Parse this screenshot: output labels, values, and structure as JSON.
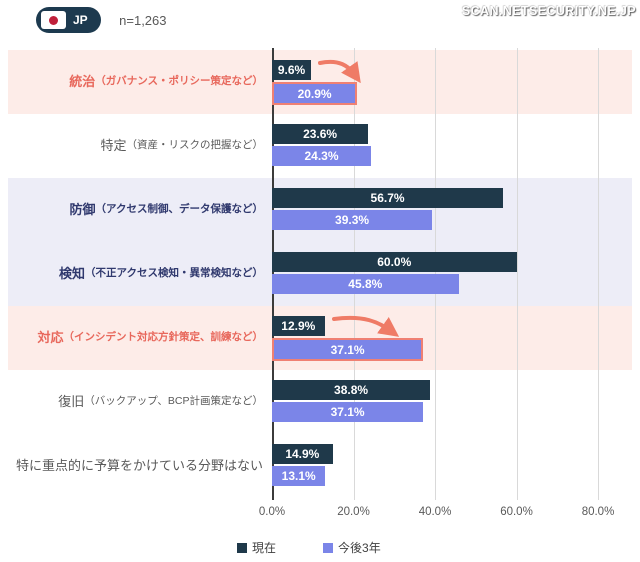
{
  "header": {
    "country_badge": {
      "label": "JP",
      "flag": "japan-flag"
    },
    "sample_size": "n=1,263"
  },
  "watermark": "SCAN.NETSECURITY.NE.JP",
  "colors": {
    "bar_current": "#1f394a",
    "bar_future": "#7b85e8",
    "highlight_red_bg": "#fdece8",
    "highlight_blue_bg": "#ededf7",
    "highlight_red_text": "#e8685c",
    "highlight_blue_text": "#30396e",
    "highlight_border": "#ef8073",
    "arrow": "#ef7b66",
    "gridline": "#d9d9d9",
    "axis_line": "#3b3b3b",
    "text_gray": "#595959",
    "badge_bg": "#1d3a4f",
    "flag_red": "#c0203b"
  },
  "chart_data": {
    "type": "bar",
    "orientation": "horizontal",
    "value_unit": "%",
    "x_max": 80,
    "x_ticks": [
      0,
      20,
      40,
      60,
      80
    ],
    "x_tick_labels": [
      "0.0%",
      "20.0%",
      "40.0%",
      "60.0%",
      "80.0%"
    ],
    "grid": true,
    "legend_position": "bottom",
    "legend": [
      {
        "name": "現在",
        "color": "#1f394a"
      },
      {
        "name": "今後3年",
        "color": "#7b85e8"
      }
    ],
    "categories": [
      "統治（ガバナンス・ポリシー策定など）",
      "特定（資産・リスクの把握など）",
      "防御（アクセス制御、データ保護など）",
      "検知（不正アクセス検知・異常検知など）",
      "対応（インシデント対応方針策定、訓練など）",
      "復旧（バックアップ、BCP計画策定など）",
      "特に重点的に予算をかけている分野はない"
    ],
    "series": [
      {
        "name": "現在",
        "values": [
          9.6,
          23.6,
          56.7,
          60.0,
          12.9,
          38.8,
          14.9
        ]
      },
      {
        "name": "今後3年",
        "values": [
          20.9,
          24.3,
          39.3,
          45.8,
          37.1,
          37.1,
          13.1
        ]
      }
    ],
    "rows": [
      {
        "name": "統治",
        "detail": "（ガバナンス・ポリシー策定など）",
        "current": 9.6,
        "future": 20.9,
        "highlight": "red",
        "arrow": true
      },
      {
        "name": "特定",
        "detail": "（資産・リスクの把握など）",
        "current": 23.6,
        "future": 24.3,
        "highlight": null,
        "arrow": false
      },
      {
        "name": "防御",
        "detail": "（アクセス制御、データ保護など）",
        "current": 56.7,
        "future": 39.3,
        "highlight": "blue",
        "arrow": false
      },
      {
        "name": "検知",
        "detail": "（不正アクセス検知・異常検知など）",
        "current": 60.0,
        "future": 45.8,
        "highlight": "blue",
        "arrow": false
      },
      {
        "name": "対応",
        "detail": "（インシデント対応方針策定、訓練など）",
        "current": 12.9,
        "future": 37.1,
        "highlight": "red",
        "arrow": true
      },
      {
        "name": "復旧",
        "detail": "（バックアップ、BCP計画策定など）",
        "current": 38.8,
        "future": 37.1,
        "highlight": null,
        "arrow": false
      },
      {
        "name": "特に重点的に予算をかけている分野はない",
        "detail": "",
        "current": 14.9,
        "future": 13.1,
        "highlight": null,
        "arrow": false
      }
    ]
  }
}
